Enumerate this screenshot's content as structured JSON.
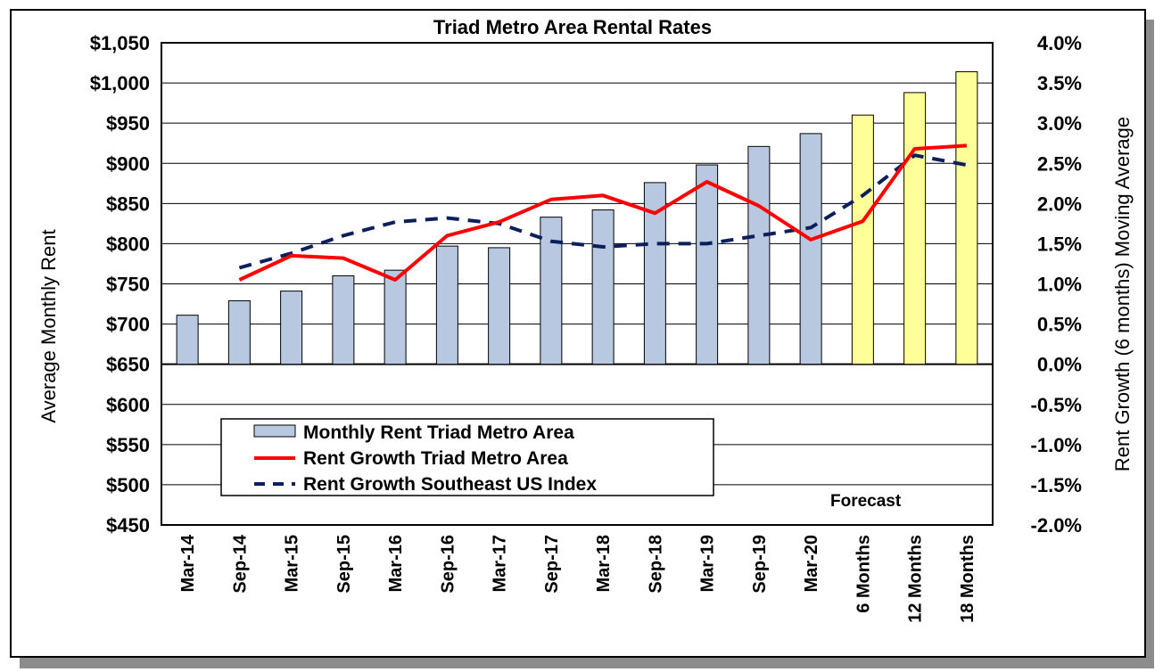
{
  "chart_data": {
    "type": "bar",
    "title": "Triad Metro Area Rental Rates",
    "categories": [
      "Mar-14",
      "Sep-14",
      "Mar-15",
      "Sep-15",
      "Mar-16",
      "Sep-16",
      "Mar-17",
      "Sep-17",
      "Mar-18",
      "Sep-18",
      "Mar-19",
      "Sep-19",
      "Mar-20",
      "6 Months",
      "12 Months",
      "18 Months"
    ],
    "series": [
      {
        "name": "Monthly Rent Triad Metro Area",
        "type": "bar",
        "axis": "left",
        "values": [
          711,
          729,
          741,
          760,
          767,
          797,
          795,
          833,
          842,
          876,
          898,
          921,
          937,
          960,
          988,
          1014
        ],
        "colors": [
          "#b8c8e0",
          "#b8c8e0",
          "#b8c8e0",
          "#b8c8e0",
          "#b8c8e0",
          "#b8c8e0",
          "#b8c8e0",
          "#b8c8e0",
          "#b8c8e0",
          "#b8c8e0",
          "#b8c8e0",
          "#b8c8e0",
          "#b8c8e0",
          "#ffff99",
          "#ffff99",
          "#ffff99"
        ]
      },
      {
        "name": "Rent Growth Triad Metro Area",
        "type": "line",
        "axis": "right",
        "style": "solid",
        "color": "#ff0000",
        "values": [
          null,
          1.05,
          1.35,
          1.32,
          1.05,
          1.6,
          1.77,
          2.05,
          2.1,
          1.88,
          2.27,
          1.97,
          1.55,
          1.78,
          2.68,
          2.72
        ]
      },
      {
        "name": "Rent Growth Southeast US Index",
        "type": "line",
        "axis": "right",
        "style": "dashed",
        "color": "#0b1f5c",
        "values": [
          null,
          1.2,
          1.38,
          1.6,
          1.77,
          1.82,
          1.75,
          1.53,
          1.46,
          1.5,
          1.5,
          1.6,
          1.7,
          2.1,
          2.6,
          2.48
        ]
      }
    ],
    "y_left": {
      "label": "Average Monthly Rent",
      "min": 450,
      "max": 1050,
      "step": 50,
      "tick_labels": [
        "$450",
        "$500",
        "$550",
        "$600",
        "$650",
        "$700",
        "$750",
        "$800",
        "$850",
        "$900",
        "$950",
        "$1,000",
        "$1,050"
      ],
      "bar_baseline": 650
    },
    "y_right": {
      "label": "Rent Growth (6 months) Moving Average",
      "min": -2.0,
      "max": 4.0,
      "step": 0.5,
      "tick_labels": [
        "-2.0%",
        "-1.5%",
        "-1.0%",
        "-0.5%",
        "0.0%",
        "0.5%",
        "1.0%",
        "1.5%",
        "2.0%",
        "2.5%",
        "3.0%",
        "3.5%",
        "4.0%"
      ]
    },
    "annotation": "Forecast",
    "grid": true,
    "legend_position": "lower-left"
  }
}
